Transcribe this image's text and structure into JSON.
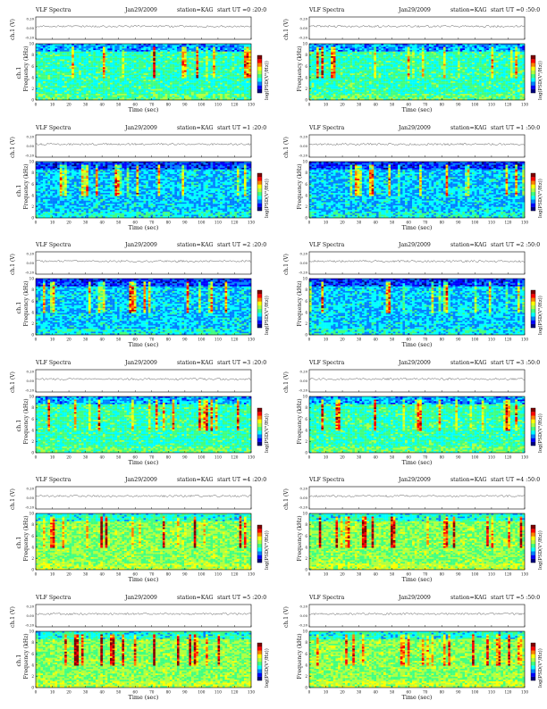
{
  "page": {
    "header_left": "VLF Spectra",
    "date": "Jan29/2009",
    "station_label": "station=KAG",
    "start_label": "start UT ="
  },
  "chart_data": [
    {
      "type": "heatmap",
      "title": "VLF Spectra  Jan29/2009  station=KAG  start UT =0 :20:0",
      "start_ut": "0 :20:0",
      "xlabel": "Time (sec)",
      "ylabel": "Frequency (kHz)",
      "top_ylabel": "ch.1 (V)",
      "side_label": "ch.1",
      "colorbar_label": "log(PSD(V²/Hz))",
      "xlim": [
        0,
        130
      ],
      "ylim": [
        0,
        10
      ],
      "xticks": [
        0,
        10,
        20,
        30,
        40,
        50,
        60,
        70,
        80,
        90,
        100,
        110,
        120,
        130
      ],
      "yticks": [
        0,
        2,
        4,
        6,
        8,
        10
      ],
      "top_yticks": [
        "0.20",
        "0.00",
        "-0.20"
      ],
      "intensity": "moderate",
      "texture": "dense vertical yellow/orange streaks 4-9 kHz"
    },
    {
      "type": "heatmap",
      "title": "VLF Spectra  Jan29/2009  station=KAG  start UT =0 :50:0",
      "start_ut": "0 :50:0",
      "xlabel": "Time (sec)",
      "ylabel": "Frequency (kHz)",
      "top_ylabel": "ch.1 (V)",
      "colorbar_label": "log(PSD(V²/Hz))",
      "xlim": [
        0,
        130
      ],
      "ylim": [
        0,
        10
      ],
      "xticks": [
        0,
        10,
        20,
        30,
        40,
        50,
        60,
        70,
        80,
        90,
        100,
        110,
        120,
        130
      ],
      "yticks": [
        0,
        2,
        4,
        6,
        8,
        10
      ],
      "top_yticks": [
        "0.20",
        "0.00",
        "-0.20"
      ],
      "intensity": "moderate",
      "texture": "yellow streaks with red bursts near 50 s and 90 s"
    },
    {
      "type": "heatmap",
      "title": "VLF Spectra  Jan29/2009  station=KAG  start UT =1 :20:0",
      "start_ut": "1 :20:0",
      "xlabel": "Time (sec)",
      "ylabel": "Frequency (kHz)",
      "top_ylabel": "ch.1 (V)",
      "side_label": "ch.1",
      "colorbar_label": "log(PSD(V²/Hz))",
      "xlim": [
        0,
        130
      ],
      "ylim": [
        0,
        10
      ],
      "xticks": [
        0,
        10,
        20,
        30,
        40,
        50,
        60,
        70,
        80,
        90,
        100,
        110,
        120,
        130
      ],
      "yticks": [
        0,
        2,
        4,
        6,
        8,
        10
      ],
      "top_yticks": [
        "0.20",
        "0.00",
        "-0.20"
      ],
      "intensity": "low",
      "texture": "mostly blue with sparse streaks; bright patch near 80 s"
    },
    {
      "type": "heatmap",
      "title": "VLF Spectra  Jan29/2009  station=KAG  start UT =1 :50:0",
      "start_ut": "1 :50:0",
      "xlabel": "Time (sec)",
      "ylabel": "Frequency (kHz)",
      "top_ylabel": "ch.1 (V)",
      "colorbar_label": "log(PSD(V²/Hz))",
      "xlim": [
        0,
        130
      ],
      "ylim": [
        0,
        10
      ],
      "xticks": [
        0,
        10,
        20,
        30,
        40,
        50,
        60,
        70,
        80,
        90,
        100,
        110,
        120,
        130
      ],
      "yticks": [
        0,
        2,
        4,
        6,
        8,
        10
      ],
      "top_yticks": [
        "0.20",
        "0.00",
        "-0.20"
      ],
      "intensity": "low",
      "texture": "blue background, red burst near 40 s"
    },
    {
      "type": "heatmap",
      "title": "VLF Spectra  Jan29/2009  station=KAG  start UT =2 :20:0",
      "start_ut": "2 :20:0",
      "xlabel": "Time (sec)",
      "ylabel": "Frequency (kHz)",
      "top_ylabel": "ch.1 (V)",
      "side_label": "ch.1",
      "colorbar_label": "log(PSD(V²/Hz))",
      "xlim": [
        0,
        130
      ],
      "ylim": [
        0,
        10
      ],
      "xticks": [
        0,
        10,
        20,
        30,
        40,
        50,
        60,
        70,
        80,
        90,
        100,
        110,
        120,
        130
      ],
      "yticks": [
        0,
        2,
        4,
        6,
        8,
        10
      ],
      "top_yticks": [
        "0.20",
        "0.00",
        "-0.20"
      ],
      "intensity": "low",
      "texture": "blue with scattered thin yellow streaks"
    },
    {
      "type": "heatmap",
      "title": "VLF Spectra  Jan29/2009  station=KAG  start UT =2 :50:0",
      "start_ut": "2 :50:0",
      "xlabel": "Time (sec)",
      "ylabel": "Frequency (kHz)",
      "top_ylabel": "ch.1 (V)",
      "colorbar_label": "log(PSD(V²/Hz))",
      "xlim": [
        0,
        130
      ],
      "ylim": [
        0,
        10
      ],
      "xticks": [
        0,
        10,
        20,
        30,
        40,
        50,
        60,
        70,
        80,
        90,
        100,
        110,
        120,
        130
      ],
      "yticks": [
        0,
        2,
        4,
        6,
        8,
        10
      ],
      "top_yticks": [
        "0.20",
        "0.00",
        "-0.20"
      ],
      "intensity": "low",
      "texture": "blue with red streaks near 20 s and 110 s"
    },
    {
      "type": "heatmap",
      "title": "VLF Spectra  Jan29/2009  station=KAG  start UT =3 :20:0",
      "start_ut": "3 :20:0",
      "xlabel": "Time (sec)",
      "ylabel": "Frequency (kHz)",
      "top_ylabel": "ch.1 (V)",
      "side_label": "ch.1",
      "colorbar_label": "log(PSD(V²/Hz))",
      "xlim": [
        0,
        130
      ],
      "ylim": [
        0,
        10
      ],
      "xticks": [
        0,
        10,
        20,
        30,
        40,
        50,
        60,
        70,
        80,
        90,
        100,
        110,
        120,
        130
      ],
      "yticks": [
        0,
        2,
        4,
        6,
        8,
        10
      ],
      "top_yticks": [
        "0.20",
        "0.00",
        "-0.20"
      ],
      "intensity": "moderate",
      "texture": "green/yellow broadband, bright streak near 115 s"
    },
    {
      "type": "heatmap",
      "title": "VLF Spectra  Jan29/2009  station=KAG  start UT =3 :50:0",
      "start_ut": "3 :50:0",
      "xlabel": "Time (sec)",
      "ylabel": "Frequency (kHz)",
      "top_ylabel": "ch.1 (V)",
      "colorbar_label": "log(PSD(V²/Hz))",
      "xlim": [
        0,
        130
      ],
      "ylim": [
        0,
        10
      ],
      "xticks": [
        0,
        10,
        20,
        30,
        40,
        50,
        60,
        70,
        80,
        90,
        100,
        110,
        120,
        130
      ],
      "yticks": [
        0,
        2,
        4,
        6,
        8,
        10
      ],
      "top_yticks": [
        "0.20",
        "0.00",
        "-0.20"
      ],
      "intensity": "moderate",
      "texture": "green/yellow, broad bright patch near 85 s"
    },
    {
      "type": "heatmap",
      "title": "VLF Spectra  Jan29/2009  station=KAG  start UT =4 :20:0",
      "start_ut": "4 :20:0",
      "xlabel": "Time (sec)",
      "ylabel": "Frequency (kHz)",
      "top_ylabel": "ch.1 (V)",
      "side_label": "ch.1",
      "colorbar_label": "log(PSD(V²/Hz))",
      "xlim": [
        0,
        130
      ],
      "ylim": [
        0,
        10
      ],
      "xticks": [
        0,
        10,
        20,
        30,
        40,
        50,
        60,
        70,
        80,
        90,
        100,
        110,
        120,
        130
      ],
      "yticks": [
        0,
        2,
        4,
        6,
        8,
        10
      ],
      "top_yticks": [
        "0.20",
        "0.00",
        "-0.20"
      ],
      "intensity": "high",
      "texture": "green base with strong red streaks near 35 s, 55 s, 90 s"
    },
    {
      "type": "heatmap",
      "title": "VLF Spectra  Jan29/2009  station=KAG  start UT =4 :50:0",
      "start_ut": "4 :50:0",
      "xlabel": "Time (sec)",
      "ylabel": "Frequency (kHz)",
      "top_ylabel": "ch.1 (V)",
      "colorbar_label": "log(PSD(V²/Hz))",
      "xlim": [
        0,
        130
      ],
      "ylim": [
        0,
        10
      ],
      "xticks": [
        0,
        10,
        20,
        30,
        40,
        50,
        60,
        70,
        80,
        90,
        100,
        110,
        120,
        130
      ],
      "yticks": [
        0,
        2,
        4,
        6,
        8,
        10
      ],
      "top_yticks": [
        "0.20",
        "0.00",
        "-0.20"
      ],
      "intensity": "high",
      "texture": "green base with red streak near 50 s, horizontal bands"
    },
    {
      "type": "heatmap",
      "title": "VLF Spectra  Jan29/2009  station=KAG  start UT =5 :20:0",
      "start_ut": "5 :20:0",
      "xlabel": "Time (sec)",
      "ylabel": "Frequency (kHz)",
      "top_ylabel": "ch.1 (V)",
      "side_label": "ch.1",
      "colorbar_label": "log(PSD(V²/Hz))",
      "xlim": [
        0,
        130
      ],
      "ylim": [
        0,
        10
      ],
      "xticks": [
        0,
        10,
        20,
        30,
        40,
        50,
        60,
        70,
        80,
        90,
        100,
        110,
        120,
        130
      ],
      "yticks": [
        0,
        2,
        4,
        6,
        8,
        10
      ],
      "top_yticks": [
        "0.20",
        "0.00",
        "-0.20"
      ],
      "intensity": "high",
      "texture": "green base, strong yellow/red band 6-10 kHz, red streak near 80 s"
    },
    {
      "type": "heatmap",
      "title": "VLF Spectra  Jan29/2009  station=KAG  start UT =5 :50:0",
      "start_ut": "5 :50:0",
      "xlabel": "Time (sec)",
      "ylabel": "Frequency (kHz)",
      "top_ylabel": "ch.1 (V)",
      "colorbar_label": "log(PSD(V²/Hz))",
      "xlim": [
        0,
        130
      ],
      "ylim": [
        0,
        10
      ],
      "xticks": [
        0,
        10,
        20,
        30,
        40,
        50,
        60,
        70,
        80,
        90,
        100,
        110,
        120,
        130
      ],
      "yticks": [
        0,
        2,
        4,
        6,
        8,
        10
      ],
      "top_yticks": [
        "0.20",
        "0.00",
        "-0.20"
      ],
      "intensity": "high",
      "texture": "green base, yellow/red band 6-10 kHz, red streaks near 50 s and 115 s"
    }
  ],
  "colors": {
    "colormap": [
      "#00007f",
      "#0000ff",
      "#0080ff",
      "#00ffff",
      "#40ff80",
      "#b0ff40",
      "#ffff00",
      "#ff8000",
      "#ff0000",
      "#800000"
    ],
    "text": "#111111"
  }
}
